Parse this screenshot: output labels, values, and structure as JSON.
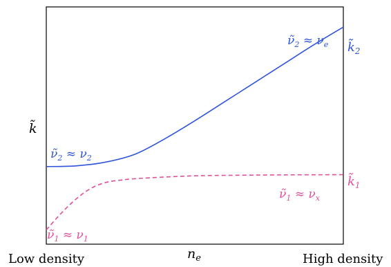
{
  "chart_data": {
    "type": "line",
    "xlabel": "n",
    "xlabel_sub": "e",
    "ylabel": "k̃",
    "x_ticklabels": {
      "left": "Low density",
      "right": "High density"
    },
    "xlim": [
      0,
      1
    ],
    "ylim": [
      0,
      1
    ],
    "grid": false,
    "series": [
      {
        "label_end": {
          "sym": "k̃",
          "sub": "2"
        },
        "color": "#2f54d8",
        "dash": "solid",
        "x": [
          0,
          0.1,
          0.2,
          0.3,
          0.4,
          0.5,
          0.6,
          0.7,
          0.8,
          0.9,
          1.0
        ],
        "y": [
          0.327,
          0.33,
          0.346,
          0.38,
          0.445,
          0.52,
          0.6,
          0.68,
          0.76,
          0.84,
          0.915
        ]
      },
      {
        "label_end": {
          "sym": "k̃",
          "sub": "1"
        },
        "color": "#e0509a",
        "dash": "dashed",
        "x": [
          0,
          0.05,
          0.1,
          0.15,
          0.2,
          0.25,
          0.3,
          0.4,
          0.5,
          0.6,
          0.8,
          1.0
        ],
        "y": [
          0.06,
          0.13,
          0.19,
          0.235,
          0.26,
          0.27,
          0.276,
          0.283,
          0.288,
          0.29,
          0.292,
          0.293
        ]
      }
    ],
    "annotations": [
      {
        "text": "ν̃",
        "sub": "2",
        "rel": " ≈ ν",
        "rel_sub": "e",
        "color": "#2f54d8"
      },
      {
        "text": "ν̃",
        "sub": "2",
        "rel": " ≈ ν",
        "rel_sub": "2",
        "color": "#2f54d8"
      },
      {
        "text": "ν̃",
        "sub": "1",
        "rel": " ≈ ν",
        "rel_sub": "x",
        "color": "#e0509a"
      },
      {
        "text": "ν̃",
        "sub": "1",
        "rel": " ≈ ν",
        "rel_sub": "1",
        "color": "#e0509a"
      }
    ]
  }
}
